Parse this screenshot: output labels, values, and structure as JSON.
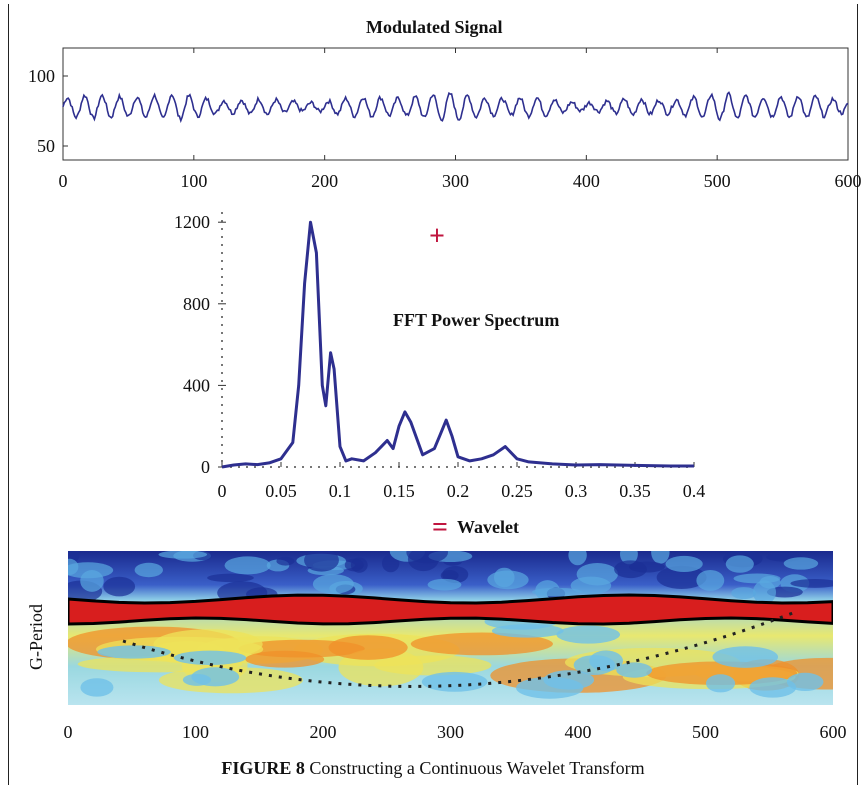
{
  "colors": {
    "line": "#2e2f8f",
    "accent": "#c0163f",
    "wavelet_high": "#d81e1e",
    "wavelet_low": "#1a2a8e"
  },
  "chart_data": [
    {
      "type": "line",
      "title": "Modulated Signal",
      "xlabel": "",
      "ylabel": "",
      "xlim": [
        0,
        600
      ],
      "ylim": [
        40,
        120
      ],
      "xticks": [
        0,
        100,
        200,
        300,
        400,
        500,
        600
      ],
      "yticks": [
        50,
        100
      ],
      "signal": {
        "baseline": 78,
        "amplitude": 6,
        "period_samples": 13.3
      }
    },
    {
      "type": "line",
      "title": "FFT Power Spectrum",
      "xlabel": "",
      "ylabel": "",
      "xlim": [
        0,
        0.4
      ],
      "ylim": [
        0,
        1250
      ],
      "xticks": [
        "0",
        "0.05",
        "0.1",
        "0.15",
        "0.2",
        "0.25",
        "0.3",
        "0.35",
        "0.4"
      ],
      "yticks": [
        0,
        400,
        800,
        1200
      ],
      "points": [
        [
          0,
          0
        ],
        [
          0.01,
          10
        ],
        [
          0.02,
          15
        ],
        [
          0.03,
          12
        ],
        [
          0.04,
          20
        ],
        [
          0.05,
          40
        ],
        [
          0.06,
          120
        ],
        [
          0.065,
          400
        ],
        [
          0.07,
          900
        ],
        [
          0.075,
          1200
        ],
        [
          0.08,
          1050
        ],
        [
          0.085,
          400
        ],
        [
          0.088,
          300
        ],
        [
          0.092,
          560
        ],
        [
          0.095,
          480
        ],
        [
          0.1,
          100
        ],
        [
          0.105,
          30
        ],
        [
          0.11,
          40
        ],
        [
          0.12,
          30
        ],
        [
          0.13,
          70
        ],
        [
          0.14,
          130
        ],
        [
          0.145,
          90
        ],
        [
          0.15,
          200
        ],
        [
          0.155,
          270
        ],
        [
          0.16,
          220
        ],
        [
          0.17,
          60
        ],
        [
          0.18,
          90
        ],
        [
          0.185,
          160
        ],
        [
          0.19,
          230
        ],
        [
          0.195,
          150
        ],
        [
          0.2,
          50
        ],
        [
          0.21,
          30
        ],
        [
          0.22,
          40
        ],
        [
          0.23,
          60
        ],
        [
          0.24,
          100
        ],
        [
          0.25,
          40
        ],
        [
          0.26,
          25
        ],
        [
          0.27,
          20
        ],
        [
          0.28,
          15
        ],
        [
          0.3,
          10
        ],
        [
          0.32,
          12
        ],
        [
          0.35,
          8
        ],
        [
          0.38,
          5
        ],
        [
          0.4,
          5
        ]
      ]
    },
    {
      "type": "heatmap",
      "title": "Wavelet",
      "xlabel": "",
      "ylabel": "G-Period",
      "xlim": [
        0,
        600
      ],
      "xticks": [
        0,
        100,
        200,
        300,
        400,
        500,
        600
      ]
    }
  ],
  "operators": {
    "plus": "+",
    "equals": "="
  },
  "caption": {
    "label": "FIGURE 8",
    "text": " Constructing a Continuous Wavelet Transform"
  }
}
